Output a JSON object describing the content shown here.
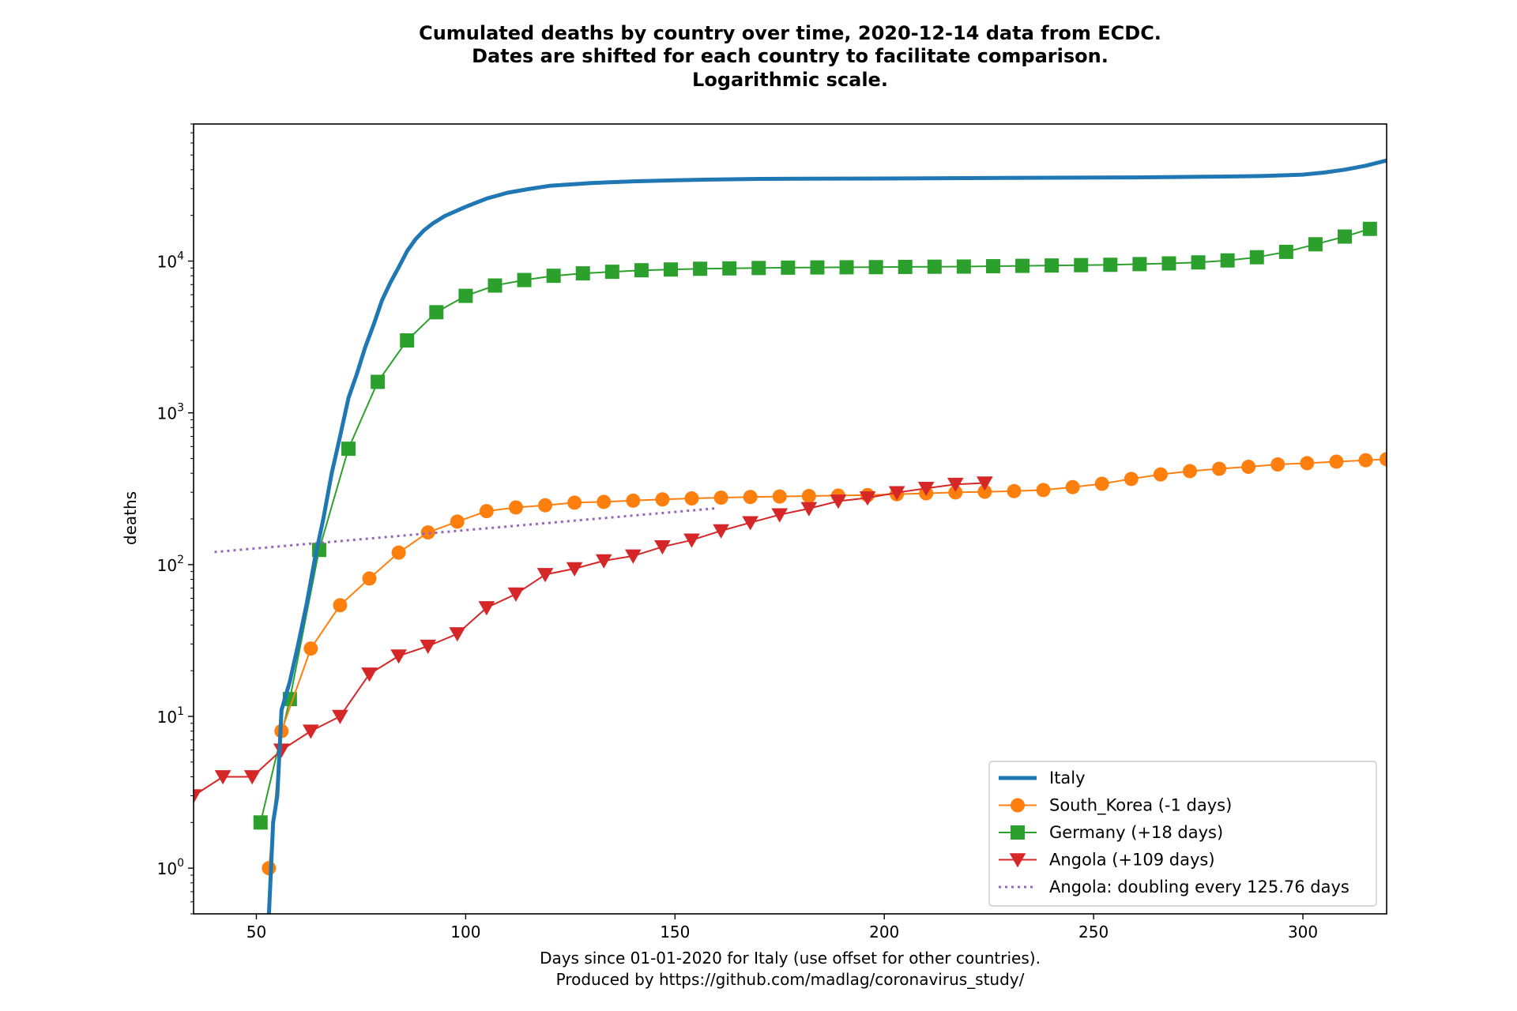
{
  "chart_data": {
    "type": "line",
    "title_lines": [
      "Cumulated deaths by country over time, 2020-12-14 data from ECDC.",
      "Dates are shifted for each country to facilitate comparison.",
      "Logarithmic scale."
    ],
    "xlabel_lines": [
      "Days since 01-01-2020 for Italy (use offset for other countries).",
      "Produced by https://github.com/madlag/coronavirus_study/"
    ],
    "ylabel": "deaths",
    "xlim": [
      35,
      320
    ],
    "ylim": [
      0.5,
      80000
    ],
    "yscale": "log",
    "x_ticks": [
      50,
      100,
      150,
      200,
      250,
      300
    ],
    "y_ticks": [
      {
        "value": 1,
        "base": "10",
        "exp": "0"
      },
      {
        "value": 10,
        "base": "10",
        "exp": "1"
      },
      {
        "value": 100,
        "base": "10",
        "exp": "2"
      },
      {
        "value": 1000,
        "base": "10",
        "exp": "3"
      },
      {
        "value": 10000,
        "base": "10",
        "exp": "4"
      }
    ],
    "grid": false,
    "legend_position": "lower-right",
    "series": [
      {
        "name": "Italy",
        "color": "#1f77b4",
        "marker": "none",
        "x": [
          53,
          54,
          55,
          56,
          58,
          60,
          62,
          64,
          66,
          68,
          70,
          72,
          74,
          76,
          78,
          80,
          82,
          84,
          86,
          88,
          90,
          92,
          95,
          100,
          105,
          110,
          115,
          120,
          130,
          140,
          150,
          160,
          170,
          180,
          200,
          220,
          240,
          260,
          280,
          290,
          300,
          305,
          310,
          315,
          320
        ],
        "y": [
          0.5,
          2,
          3,
          11,
          17,
          30,
          55,
          110,
          200,
          400,
          700,
          1250,
          1800,
          2700,
          3800,
          5500,
          7200,
          9100,
          11600,
          13900,
          15900,
          17600,
          19800,
          22800,
          25800,
          28200,
          29800,
          31300,
          32700,
          33500,
          34100,
          34500,
          34800,
          34900,
          35000,
          35200,
          35400,
          35600,
          36000,
          36300,
          37100,
          38300,
          40000,
          42500,
          46000
        ]
      },
      {
        "name": "South_Korea (-1 days)",
        "color": "#ff7f0e",
        "marker": "circle",
        "x": [
          53,
          56,
          63,
          70,
          77,
          84,
          91,
          98,
          105,
          112,
          119,
          126,
          133,
          140,
          147,
          154,
          161,
          168,
          175,
          182,
          189,
          196,
          203,
          210,
          217,
          224,
          231,
          238,
          245,
          252,
          259,
          266,
          273,
          280,
          287,
          294,
          301,
          308,
          315,
          320
        ],
        "y": [
          1,
          8,
          28,
          54,
          81,
          120,
          163,
          192,
          225,
          238,
          246,
          256,
          259,
          264,
          269,
          273,
          276,
          279,
          281,
          283,
          285,
          287,
          291,
          295,
          299,
          302,
          305,
          310,
          324,
          341,
          367,
          393,
          413,
          428,
          441,
          457,
          466,
          477,
          487,
          495
        ]
      },
      {
        "name": "Germany (+18 days)",
        "color": "#2ca02c",
        "marker": "square",
        "x": [
          51,
          58,
          65,
          72,
          79,
          86,
          93,
          100,
          107,
          114,
          121,
          128,
          135,
          142,
          149,
          156,
          163,
          170,
          177,
          184,
          191,
          198,
          205,
          212,
          219,
          226,
          233,
          240,
          247,
          254,
          261,
          268,
          275,
          282,
          289,
          296,
          303,
          310,
          316
        ],
        "y": [
          2,
          13,
          125,
          580,
          1600,
          3000,
          4600,
          5900,
          6900,
          7500,
          8000,
          8300,
          8500,
          8700,
          8800,
          8900,
          8950,
          9000,
          9050,
          9080,
          9100,
          9120,
          9150,
          9180,
          9200,
          9250,
          9300,
          9350,
          9400,
          9450,
          9550,
          9650,
          9800,
          10100,
          10600,
          11500,
          12900,
          14500,
          16300
        ]
      },
      {
        "name": "Angola (+109 days)",
        "color": "#d62728",
        "marker": "triangle-down",
        "x": [
          35,
          42,
          49,
          56,
          63,
          70,
          77,
          84,
          91,
          98,
          105,
          112,
          119,
          126,
          133,
          140,
          147,
          154,
          161,
          168,
          175,
          182,
          189,
          196,
          203,
          210,
          217,
          224
        ],
        "y": [
          3,
          4,
          4,
          6,
          8,
          10,
          19,
          25,
          29,
          35,
          52,
          64,
          86,
          94,
          106,
          114,
          131,
          145,
          167,
          189,
          213,
          234,
          262,
          275,
          298,
          318,
          338,
          345
        ]
      },
      {
        "name": "Angola: doubling every 125.76 days",
        "color": "#9467bd",
        "marker": "none",
        "dashed": true,
        "x": [
          40,
          160
        ],
        "y": [
          121,
          235
        ]
      }
    ]
  }
}
